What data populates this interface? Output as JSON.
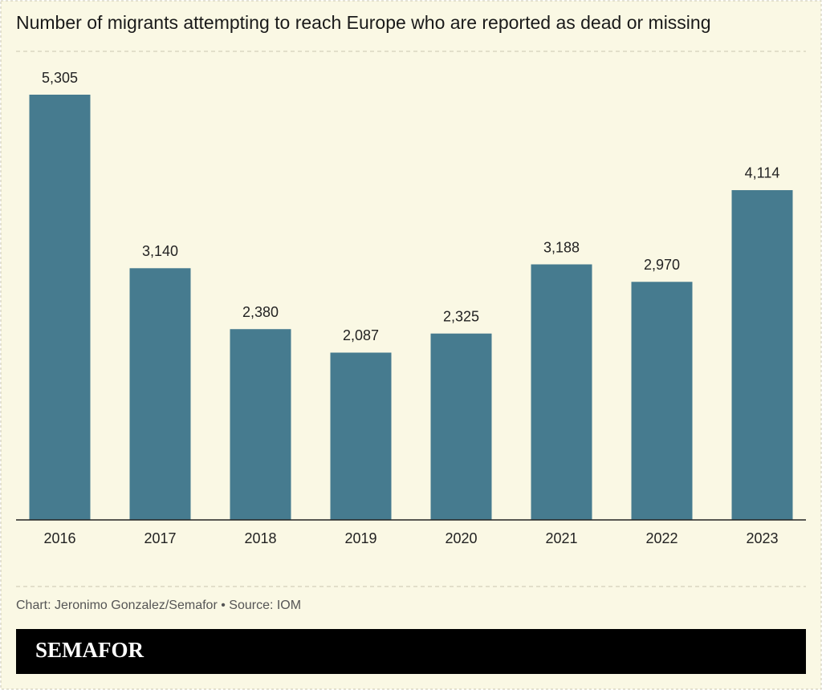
{
  "chart_data": {
    "type": "bar",
    "title": "Number of migrants attempting to reach Europe who are reported as dead or missing",
    "categories": [
      "2016",
      "2017",
      "2018",
      "2019",
      "2020",
      "2021",
      "2022",
      "2023"
    ],
    "values": [
      5305,
      3140,
      2380,
      2087,
      2325,
      3188,
      2970,
      4114
    ],
    "value_labels": [
      "5,305",
      "3,140",
      "2,380",
      "2,087",
      "2,325",
      "3,188",
      "2,970",
      "4,114"
    ],
    "color": "#467b8f",
    "credit": "Chart: Jeronimo Gonzalez/Semafor • Source: IOM",
    "brand": "SEMAFOR"
  }
}
